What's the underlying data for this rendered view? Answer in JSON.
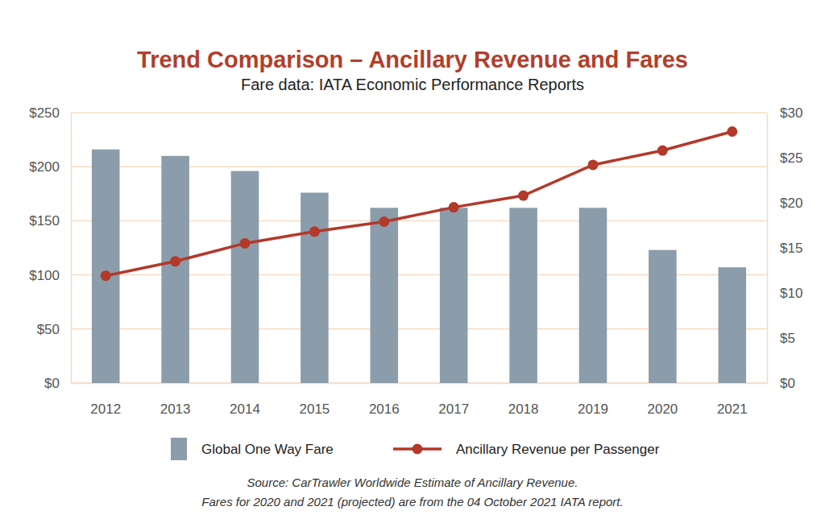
{
  "chart_data": {
    "type": "bar",
    "title": "Trend Comparison – Ancillary Revenue and Fares",
    "subtitle": "Fare data: IATA Economic Performance Reports",
    "annotations": [
      "Source: CarTrawler Worldwide Estimate of Ancillary Revenue.",
      "Fares for 2020 and 2021 (projected) are from the 04 October 2021 IATA report."
    ],
    "categories": [
      "2012",
      "2013",
      "2014",
      "2015",
      "2016",
      "2017",
      "2018",
      "2019",
      "2020",
      "2021"
    ],
    "series": [
      {
        "name": "Global One Way Fare",
        "type": "bar",
        "color": "#8b9caa",
        "values": [
          216,
          210,
          196,
          176,
          162,
          162,
          162,
          162,
          123,
          107
        ]
      },
      {
        "name": "Ancillary Revenue per Passenger",
        "type": "line",
        "axis": "y2",
        "color": "#b3392a",
        "marker": "circle",
        "values": [
          11.9,
          13.5,
          15.5,
          16.8,
          17.9,
          19.5,
          20.8,
          24.2,
          25.8,
          27.9
        ]
      }
    ],
    "ylim": [
      0,
      250
    ],
    "yticks": [
      {
        "value": 0,
        "label": "$0"
      },
      {
        "value": 50,
        "label": "$50"
      },
      {
        "value": 100,
        "label": "$100"
      },
      {
        "value": 150,
        "label": "$150"
      },
      {
        "value": 200,
        "label": "$200"
      },
      {
        "value": 250,
        "label": "$250"
      }
    ],
    "y2lim": [
      0,
      30
    ],
    "y2ticks": [
      {
        "value": 0,
        "label": "$0"
      },
      {
        "value": 5,
        "label": "$5"
      },
      {
        "value": 10,
        "label": "$10"
      },
      {
        "value": 15,
        "label": "$15"
      },
      {
        "value": 20,
        "label": "$20"
      },
      {
        "value": 25,
        "label": "$25"
      },
      {
        "value": 30,
        "label": "$30"
      }
    ],
    "grid": true,
    "legend": "bottom"
  }
}
